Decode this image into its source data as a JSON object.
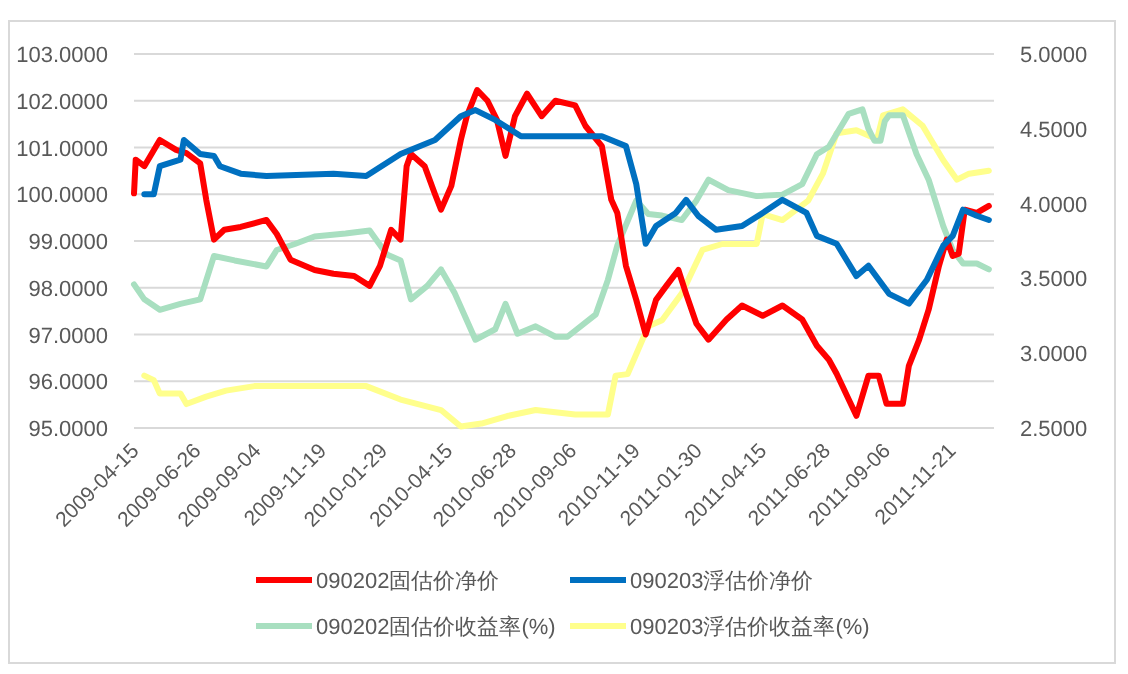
{
  "chart_data": {
    "type": "line",
    "xlim": [
      "2009-04-15",
      "2012-01-10"
    ],
    "xticks": [
      "2009-04-15",
      "2009-06-26",
      "2009-09-04",
      "2009-11-19",
      "2010-01-29",
      "2010-04-15",
      "2010-06-28",
      "2010-09-06",
      "2010-11-19",
      "2011-01-30",
      "2011-04-15",
      "2011-06-28",
      "2011-09-06",
      "2011-11-21"
    ],
    "ylim": [
      95,
      103
    ],
    "yticks": [
      {
        "value": 95,
        "label": "95.0000"
      },
      {
        "value": 96,
        "label": "96.0000"
      },
      {
        "value": 97,
        "label": "97.0000"
      },
      {
        "value": 98,
        "label": "98.0000"
      },
      {
        "value": 99,
        "label": "99.0000"
      },
      {
        "value": 100,
        "label": "100.0000"
      },
      {
        "value": 101,
        "label": "101.0000"
      },
      {
        "value": 102,
        "label": "102.0000"
      },
      {
        "value": 103,
        "label": "103.0000"
      }
    ],
    "y2lim": [
      2.5,
      5
    ],
    "y2ticks": [
      {
        "value": 2.5,
        "label": "2.5000"
      },
      {
        "value": 3,
        "label": "3.0000"
      },
      {
        "value": 3.5,
        "label": "3.5000"
      },
      {
        "value": 4,
        "label": "4.0000"
      },
      {
        "value": 4.5,
        "label": "4.5000"
      },
      {
        "value": 5,
        "label": "5.0000"
      }
    ],
    "grid": "y",
    "legend": "bottom",
    "marker": "none",
    "line_style": "solid",
    "series": [
      {
        "name": "090202固估价净价",
        "color": "#ff0000",
        "x": [
          "2009-04-15",
          "2009-04-17",
          "2009-04-27",
          "2009-05-15",
          "2009-06-03",
          "2009-06-15",
          "2009-07-01",
          "2009-07-08",
          "2009-07-17",
          "2009-07-29",
          "2009-08-17",
          "2009-09-16",
          "2009-09-28",
          "2009-10-14",
          "2009-11-11",
          "2009-12-03",
          "2009-12-27",
          "2010-01-14",
          "2010-01-26",
          "2010-02-08",
          "2010-02-19",
          "2010-02-26",
          "2010-03-03",
          "2010-03-19",
          "2010-03-31",
          "2010-04-07",
          "2010-04-19",
          "2010-04-30",
          "2010-05-07",
          "2010-05-19",
          "2010-05-31",
          "2010-06-11",
          "2010-06-21",
          "2010-07-02",
          "2010-07-16",
          "2010-08-02",
          "2010-08-18",
          "2010-09-10",
          "2010-09-22",
          "2010-10-11",
          "2010-10-22",
          "2010-10-29",
          "2010-11-08",
          "2010-11-20",
          "2010-12-01",
          "2010-12-13",
          "2010-12-25",
          "2011-01-08",
          "2011-01-17",
          "2011-01-29",
          "2011-02-12",
          "2011-03-05",
          "2011-03-23",
          "2011-04-16",
          "2011-05-09",
          "2011-06-01",
          "2011-06-18",
          "2011-07-02",
          "2011-07-11",
          "2011-08-03",
          "2011-08-17",
          "2011-08-29",
          "2011-09-07",
          "2011-09-26",
          "2011-10-03",
          "2011-10-15",
          "2011-10-26",
          "2011-11-07",
          "2011-11-16",
          "2011-11-23",
          "2011-11-30",
          "2011-12-07",
          "2011-12-21",
          "2012-01-04"
        ],
        "values": [
          100.02,
          100.74,
          100.6,
          101.16,
          100.95,
          100.88,
          100.66,
          99.88,
          99.03,
          99.24,
          99.3,
          99.45,
          99.15,
          98.6,
          98.38,
          98.3,
          98.25,
          98.04,
          98.47,
          99.24,
          99.03,
          100.6,
          100.86,
          100.6,
          100.0,
          99.67,
          100.18,
          101.16,
          101.67,
          102.23,
          102.0,
          101.59,
          100.82,
          101.67,
          102.15,
          101.67,
          102.0,
          101.9,
          101.46,
          101.03,
          99.88,
          99.6,
          98.47,
          97.74,
          97.0,
          97.74,
          98.04,
          98.38,
          97.87,
          97.23,
          96.89,
          97.32,
          97.62,
          97.4,
          97.62,
          97.32,
          96.76,
          96.46,
          96.16,
          95.26,
          96.12,
          96.12,
          95.52,
          95.52,
          96.33,
          96.89,
          97.53,
          98.47,
          99.03,
          98.68,
          98.73,
          99.67,
          99.6,
          99.75
        ]
      },
      {
        "name": "090203浮估价净价",
        "color": "#0070c0",
        "x": [
          "2009-04-27",
          "2009-05-08",
          "2009-05-15",
          "2009-06-08",
          "2009-06-12",
          "2009-07-01",
          "2009-07-17",
          "2009-07-24",
          "2009-08-17",
          "2009-09-16",
          "2009-12-03",
          "2010-01-10",
          "2010-02-19",
          "2010-03-31",
          "2010-04-30",
          "2010-05-17",
          "2010-06-09",
          "2010-07-09",
          "2010-08-09",
          "2010-08-18",
          "2010-09-17",
          "2010-10-11",
          "2010-11-08",
          "2010-11-20",
          "2010-12-01",
          "2010-12-13",
          "2011-01-05",
          "2011-01-17",
          "2011-01-31",
          "2011-02-21",
          "2011-03-23",
          "2011-04-16",
          "2011-05-09",
          "2011-06-06",
          "2011-06-18",
          "2011-07-11",
          "2011-08-03",
          "2011-08-17",
          "2011-09-10",
          "2011-10-03",
          "2011-10-24",
          "2011-11-12",
          "2011-11-23",
          "2011-12-05",
          "2011-12-21",
          "2012-01-04"
        ],
        "values": [
          100.0,
          100.0,
          100.6,
          100.74,
          101.16,
          100.86,
          100.82,
          100.6,
          100.44,
          100.39,
          100.44,
          100.39,
          100.86,
          101.16,
          101.67,
          101.8,
          101.59,
          101.24,
          101.24,
          101.24,
          101.24,
          101.24,
          101.03,
          100.22,
          98.94,
          99.32,
          99.6,
          99.88,
          99.54,
          99.24,
          99.32,
          99.6,
          99.88,
          99.6,
          99.11,
          98.94,
          98.25,
          98.47,
          97.87,
          97.66,
          98.17,
          98.9,
          99.11,
          99.67,
          99.54,
          99.45
        ]
      },
      {
        "name": "090202固估价收益率(%)",
        "color": "#a8dfc0",
        "axis": "y2",
        "x": [
          "2009-04-15",
          "2009-04-27",
          "2009-05-15",
          "2009-06-08",
          "2009-07-01",
          "2009-07-17",
          "2009-08-10",
          "2009-09-16",
          "2009-09-28",
          "2009-10-19",
          "2009-11-11",
          "2009-12-17",
          "2010-01-14",
          "2010-02-03",
          "2010-02-19",
          "2010-03-03",
          "2010-03-22",
          "2010-04-07",
          "2010-04-23",
          "2010-05-17",
          "2010-06-09",
          "2010-06-21",
          "2010-07-05",
          "2010-07-26",
          "2010-08-18",
          "2010-09-01",
          "2010-10-04",
          "2010-10-18",
          "2010-10-29",
          "2010-11-20",
          "2010-12-04",
          "2010-12-20",
          "2011-01-12",
          "2011-01-29",
          "2011-02-12",
          "2011-03-07",
          "2011-04-09",
          "2011-05-09",
          "2011-06-01",
          "2011-06-18",
          "2011-07-02",
          "2011-07-25",
          "2011-08-10",
          "2011-08-17",
          "2011-08-24",
          "2011-08-31",
          "2011-09-05",
          "2011-09-10",
          "2011-09-26",
          "2011-10-12",
          "2011-10-26",
          "2011-11-12",
          "2011-11-23",
          "2011-12-05",
          "2011-12-21",
          "2012-01-04"
        ],
        "values": [
          3.46,
          3.36,
          3.29,
          3.33,
          3.36,
          3.65,
          3.62,
          3.58,
          3.69,
          3.73,
          3.78,
          3.8,
          3.82,
          3.66,
          3.62,
          3.36,
          3.45,
          3.56,
          3.4,
          3.09,
          3.16,
          3.33,
          3.13,
          3.18,
          3.11,
          3.11,
          3.26,
          3.49,
          3.72,
          4.02,
          3.93,
          3.92,
          3.89,
          4.02,
          4.16,
          4.09,
          4.05,
          4.06,
          4.13,
          4.33,
          4.38,
          4.6,
          4.63,
          4.5,
          4.42,
          4.42,
          4.55,
          4.59,
          4.59,
          4.33,
          4.16,
          3.85,
          3.69,
          3.6,
          3.6,
          3.56
        ]
      },
      {
        "name": "090203浮估价收益率(%)",
        "color": "#ffff8c",
        "axis": "y2",
        "x": [
          "2009-04-27",
          "2009-05-08",
          "2009-05-15",
          "2009-06-08",
          "2009-06-15",
          "2009-07-08",
          "2009-07-31",
          "2009-09-02",
          "2010-01-10",
          "2010-02-19",
          "2010-04-07",
          "2010-04-30",
          "2010-05-24",
          "2010-06-23",
          "2010-07-26",
          "2010-09-10",
          "2010-09-17",
          "2010-10-18",
          "2010-10-27",
          "2010-11-10",
          "2010-12-04",
          "2010-12-20",
          "2011-01-12",
          "2011-02-05",
          "2011-02-28",
          "2011-04-09",
          "2011-04-16",
          "2011-05-09",
          "2011-06-08",
          "2011-06-25",
          "2011-07-11",
          "2011-08-03",
          "2011-08-27",
          "2011-09-03",
          "2011-09-26",
          "2011-10-19",
          "2011-11-12",
          "2011-11-28",
          "2011-12-12",
          "2012-01-04"
        ],
        "values": [
          2.85,
          2.82,
          2.73,
          2.73,
          2.66,
          2.71,
          2.75,
          2.78,
          2.78,
          2.69,
          2.62,
          2.51,
          2.53,
          2.58,
          2.62,
          2.59,
          2.59,
          2.59,
          2.85,
          2.86,
          3.18,
          3.22,
          3.4,
          3.69,
          3.73,
          3.73,
          3.93,
          3.89,
          4.02,
          4.2,
          4.47,
          4.49,
          4.43,
          4.59,
          4.63,
          4.52,
          4.29,
          4.16,
          4.2,
          4.22
        ]
      }
    ]
  }
}
